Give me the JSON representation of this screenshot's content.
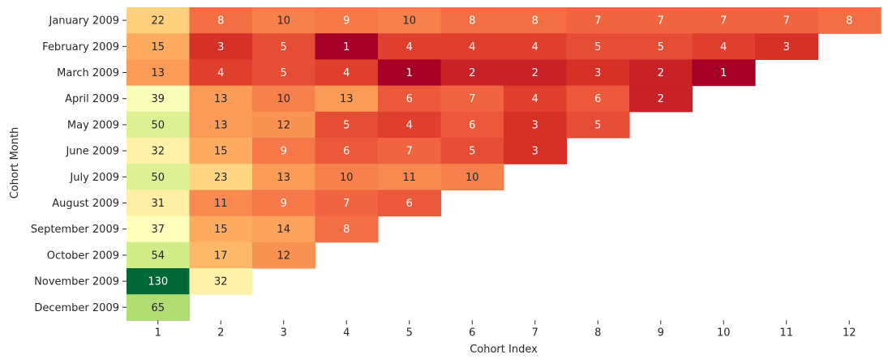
{
  "chart_data": {
    "type": "heatmap",
    "title": "",
    "xlabel": "Cohort Index",
    "ylabel": "Cohort Month",
    "x_categories": [
      "1",
      "2",
      "3",
      "4",
      "5",
      "6",
      "7",
      "8",
      "9",
      "10",
      "11",
      "12"
    ],
    "y_categories": [
      "January 2009",
      "February 2009",
      "March 2009",
      "April 2009",
      "May 2009",
      "June 2009",
      "July 2009",
      "August 2009",
      "September 2009",
      "October 2009",
      "November 2009",
      "December 2009"
    ],
    "values": [
      [
        22,
        8,
        10,
        9,
        10,
        8,
        8,
        7,
        7,
        7,
        7,
        8
      ],
      [
        15,
        3,
        5,
        1,
        4,
        4,
        4,
        5,
        5,
        4,
        3
      ],
      [
        13,
        4,
        5,
        4,
        1,
        2,
        2,
        3,
        2,
        1
      ],
      [
        39,
        13,
        10,
        13,
        6,
        7,
        4,
        6,
        2
      ],
      [
        50,
        13,
        12,
        5,
        4,
        6,
        3,
        5
      ],
      [
        32,
        15,
        9,
        6,
        7,
        5,
        3
      ],
      [
        50,
        23,
        13,
        10,
        11,
        10
      ],
      [
        31,
        11,
        9,
        7,
        6
      ],
      [
        37,
        15,
        14,
        8
      ],
      [
        54,
        17,
        12
      ],
      [
        130,
        32
      ],
      [
        65
      ]
    ],
    "colormap": "RdYlGn",
    "value_range": [
      1,
      130
    ],
    "colorbar": false,
    "grid": false
  }
}
